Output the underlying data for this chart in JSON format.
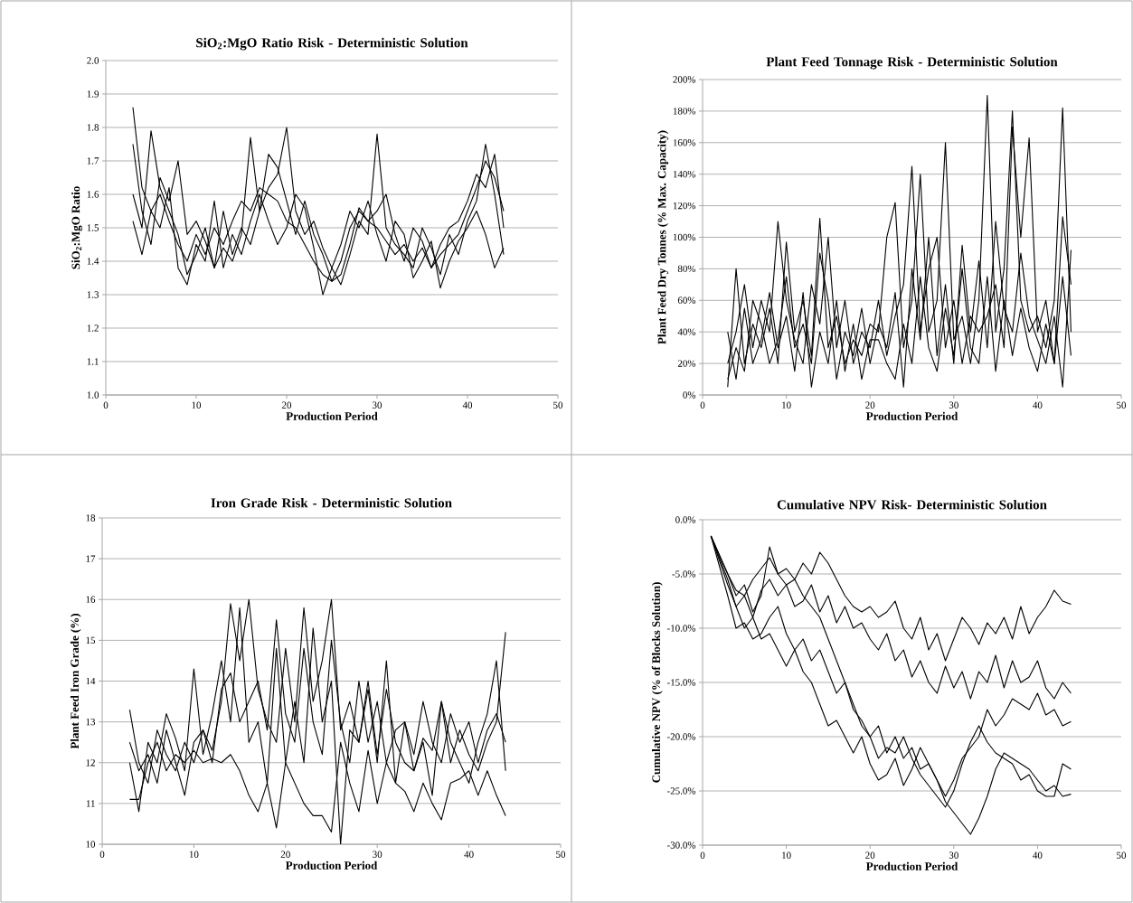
{
  "chart_data": [
    {
      "type": "line",
      "title": "SiO$_{2}$:MgO Ratio Risk - Deterministic Solution",
      "xlabel": "Production Period",
      "ylabel": "SiO$_{2}$:MgO Ratio",
      "grid": "y",
      "marker": "none",
      "line_style": "solid",
      "xlim": [
        0,
        50
      ],
      "xticks": [
        0,
        10,
        20,
        30,
        40,
        50
      ],
      "ylim": [
        1.0,
        2.0
      ],
      "yticks": [
        {
          "value": 1.0,
          "label": "1.0"
        },
        1.1,
        1.2,
        1.3,
        1.4,
        1.5,
        1.6,
        1.7,
        1.8,
        1.9,
        {
          "value": 2.0,
          "label": "2.0"
        }
      ],
      "x": [
        3,
        4,
        5,
        6,
        7,
        8,
        9,
        10,
        11,
        12,
        13,
        14,
        15,
        16,
        17,
        18,
        19,
        20,
        21,
        22,
        23,
        24,
        25,
        26,
        27,
        28,
        29,
        30,
        31,
        32,
        33,
        34,
        35,
        36,
        37,
        38,
        39,
        40,
        41,
        42,
        43,
        44
      ],
      "series": [
        {
          "color": "#000000",
          "values": [
            1.86,
            1.62,
            1.55,
            1.6,
            1.52,
            1.45,
            1.4,
            1.48,
            1.42,
            1.5,
            1.45,
            1.52,
            1.58,
            1.55,
            1.62,
            1.6,
            1.58,
            1.52,
            1.5,
            1.45,
            1.4,
            1.36,
            1.34,
            1.4,
            1.5,
            1.55,
            1.52,
            1.5,
            1.46,
            1.42,
            1.45,
            1.4,
            1.44,
            1.38,
            1.42,
            1.45,
            1.48,
            1.55,
            1.62,
            1.7,
            1.65,
            1.55
          ]
        },
        {
          "color": "#000000",
          "values": [
            1.6,
            1.5,
            1.79,
            1.62,
            1.55,
            1.48,
            1.36,
            1.42,
            1.5,
            1.38,
            1.44,
            1.4,
            1.48,
            1.77,
            1.55,
            1.62,
            1.66,
            1.8,
            1.55,
            1.48,
            1.52,
            1.44,
            1.38,
            1.33,
            1.42,
            1.52,
            1.48,
            1.78,
            1.5,
            1.45,
            1.42,
            1.38,
            1.5,
            1.44,
            1.36,
            1.48,
            1.42,
            1.52,
            1.58,
            1.75,
            1.6,
            1.42
          ]
        },
        {
          "color": "#000000",
          "values": [
            1.52,
            1.42,
            1.55,
            1.5,
            1.62,
            1.38,
            1.33,
            1.45,
            1.4,
            1.58,
            1.38,
            1.48,
            1.42,
            1.52,
            1.6,
            1.52,
            1.45,
            1.5,
            1.6,
            1.56,
            1.44,
            1.3,
            1.38,
            1.45,
            1.55,
            1.5,
            1.58,
            1.48,
            1.4,
            1.52,
            1.48,
            1.35,
            1.4,
            1.46,
            1.32,
            1.4,
            1.46,
            1.5,
            1.55,
            1.48,
            1.38,
            1.44
          ]
        },
        {
          "color": "#000000",
          "values": [
            1.75,
            1.55,
            1.45,
            1.65,
            1.58,
            1.7,
            1.48,
            1.52,
            1.46,
            1.38,
            1.55,
            1.42,
            1.5,
            1.45,
            1.55,
            1.72,
            1.68,
            1.58,
            1.48,
            1.58,
            1.48,
            1.42,
            1.34,
            1.36,
            1.45,
            1.56,
            1.52,
            1.55,
            1.6,
            1.48,
            1.4,
            1.5,
            1.46,
            1.38,
            1.45,
            1.5,
            1.52,
            1.58,
            1.66,
            1.62,
            1.72,
            1.5
          ]
        }
      ]
    },
    {
      "type": "line",
      "title": "Plant Feed Tonnage Risk - Deterministic Solution",
      "xlabel": "Production Period",
      "ylabel": "Plant Feed Dry Tonnes (% Max. Capacity)",
      "grid": "y",
      "marker": "none",
      "line_style": "solid",
      "xlim": [
        0,
        50
      ],
      "xticks": [
        0,
        10,
        20,
        30,
        40,
        50
      ],
      "ylim": [
        0,
        200
      ],
      "yticks": [
        {
          "value": 0,
          "label": "0%"
        },
        {
          "value": 20,
          "label": "20%"
        },
        {
          "value": 40,
          "label": "40%"
        },
        {
          "value": 60,
          "label": "60%"
        },
        {
          "value": 80,
          "label": "80%"
        },
        {
          "value": 100,
          "label": "100%"
        },
        {
          "value": 120,
          "label": "120%"
        },
        {
          "value": 140,
          "label": "140%"
        },
        {
          "value": 160,
          "label": "160%"
        },
        {
          "value": 180,
          "label": "180%"
        },
        {
          "value": 200,
          "label": "200%"
        }
      ],
      "x": [
        3,
        4,
        5,
        6,
        7,
        8,
        9,
        10,
        11,
        12,
        13,
        14,
        15,
        16,
        17,
        18,
        19,
        20,
        21,
        22,
        23,
        24,
        25,
        26,
        27,
        28,
        29,
        30,
        31,
        32,
        33,
        34,
        35,
        36,
        37,
        38,
        39,
        40,
        41,
        42,
        43,
        44
      ],
      "series": [
        {
          "color": "#000000",
          "values": [
            5,
            80,
            20,
            45,
            30,
            55,
            20,
            97,
            40,
            60,
            25,
            112,
            30,
            50,
            20,
            35,
            25,
            45,
            40,
            100,
            122,
            30,
            60,
            140,
            40,
            60,
            160,
            35,
            50,
            20,
            60,
            190,
            40,
            80,
            180,
            60,
            40,
            50,
            30,
            60,
            182,
            40
          ]
        },
        {
          "color": "#000000",
          "values": [
            20,
            40,
            70,
            30,
            60,
            40,
            110,
            60,
            35,
            20,
            70,
            45,
            100,
            30,
            60,
            20,
            40,
            30,
            60,
            25,
            50,
            70,
            145,
            40,
            80,
            100,
            30,
            60,
            20,
            50,
            40,
            50,
            70,
            30,
            170,
            100,
            163,
            40,
            60,
            20,
            113,
            70
          ]
        },
        {
          "color": "#000000",
          "values": [
            40,
            10,
            55,
            20,
            35,
            65,
            30,
            50,
            15,
            65,
            5,
            40,
            20,
            60,
            15,
            45,
            10,
            35,
            35,
            20,
            10,
            45,
            20,
            75,
            30,
            15,
            55,
            25,
            80,
            30,
            20,
            75,
            15,
            60,
            25,
            55,
            30,
            15,
            45,
            20,
            75,
            25
          ]
        },
        {
          "color": "#000000",
          "values": [
            10,
            30,
            15,
            60,
            45,
            20,
            35,
            75,
            30,
            45,
            20,
            90,
            60,
            10,
            40,
            25,
            55,
            20,
            45,
            30,
            65,
            5,
            80,
            35,
            100,
            25,
            70,
            20,
            95,
            40,
            85,
            30,
            110,
            55,
            40,
            90,
            50,
            35,
            20,
            50,
            5,
            92
          ]
        }
      ]
    },
    {
      "type": "line",
      "title": "Iron Grade Risk - Deterministic Solution",
      "xlabel": "Production Period",
      "ylabel": "Plant Feed Iron Grade (%)",
      "grid": "y",
      "marker": "none",
      "line_style": "solid",
      "xlim": [
        0,
        50
      ],
      "xticks": [
        0,
        10,
        20,
        30,
        40,
        50
      ],
      "ylim": [
        10,
        18
      ],
      "yticks": [
        10,
        11,
        12,
        13,
        14,
        15,
        16,
        17,
        18
      ],
      "x": [
        3,
        4,
        5,
        6,
        7,
        8,
        9,
        10,
        11,
        12,
        13,
        14,
        15,
        16,
        17,
        18,
        19,
        20,
        21,
        22,
        23,
        24,
        25,
        26,
        27,
        28,
        29,
        30,
        31,
        32,
        33,
        34,
        35,
        36,
        37,
        38,
        39,
        40,
        41,
        42,
        43,
        44
      ],
      "series": [
        {
          "color": "#000000",
          "values": [
            13.3,
            12.0,
            11.5,
            12.8,
            12.2,
            11.8,
            12.5,
            12.0,
            12.8,
            12.3,
            13.5,
            15.9,
            14.5,
            16.0,
            13.8,
            13.0,
            12.5,
            14.8,
            13.0,
            15.8,
            13.5,
            14.5,
            16.0,
            12.8,
            13.5,
            12.5,
            14.0,
            12.2,
            13.8,
            12.5,
            12.0,
            11.8,
            12.6,
            12.3,
            13.5,
            12.0,
            12.8,
            12.2,
            11.8,
            12.5,
            13.0,
            15.2
          ]
        },
        {
          "color": "#000000",
          "values": [
            12.0,
            10.8,
            12.5,
            12.0,
            13.2,
            12.6,
            11.8,
            14.3,
            12.2,
            13.2,
            14.5,
            13.0,
            15.8,
            12.5,
            13.0,
            11.5,
            14.8,
            12.0,
            13.5,
            12.0,
            15.3,
            13.0,
            14.0,
            10.0,
            12.8,
            12.5,
            13.8,
            12.0,
            14.5,
            11.5,
            13.0,
            11.8,
            12.5,
            11.2,
            13.5,
            12.5,
            12.0,
            11.5,
            12.5,
            13.2,
            14.5,
            11.8
          ]
        },
        {
          "color": "#000000",
          "values": [
            11.1,
            11.1,
            12.0,
            12.5,
            11.8,
            12.2,
            12.0,
            12.3,
            12.0,
            12.1,
            12.0,
            12.2,
            11.8,
            11.2,
            10.8,
            11.5,
            10.4,
            12.0,
            11.5,
            11.0,
            10.7,
            10.7,
            10.3,
            12.5,
            11.5,
            10.8,
            12.3,
            11.0,
            12.0,
            11.5,
            11.3,
            10.8,
            11.5,
            11.0,
            10.6,
            11.5,
            11.6,
            11.8,
            11.2,
            11.8,
            11.2,
            10.7
          ]
        },
        {
          "color": "#000000",
          "values": [
            12.5,
            11.8,
            12.2,
            11.5,
            12.8,
            12.0,
            11.2,
            12.5,
            12.8,
            12.0,
            13.8,
            14.2,
            13.0,
            13.5,
            14.0,
            12.8,
            15.5,
            13.2,
            12.5,
            14.8,
            13.0,
            12.2,
            15.0,
            13.0,
            12.0,
            14.0,
            12.5,
            13.5,
            12.0,
            12.8,
            13.0,
            12.2,
            13.5,
            12.5,
            12.0,
            13.2,
            12.5,
            13.0,
            12.0,
            12.8,
            13.2,
            12.5
          ]
        }
      ]
    },
    {
      "type": "line",
      "title": "Cumulative NPV Risk- Deterministic Solution",
      "xlabel": "Production Period",
      "ylabel": "Cumulative NPV (% of Blocks Solution)",
      "grid": "y",
      "marker": "none",
      "line_style": "solid",
      "xlim": [
        0,
        50
      ],
      "xticks": [
        0,
        10,
        20,
        30,
        40,
        50
      ],
      "ylim": [
        -30,
        0
      ],
      "yticks": [
        {
          "value": -30,
          "label": "-30.0%"
        },
        {
          "value": -25,
          "label": "-25.0%"
        },
        {
          "value": -20,
          "label": "-20.0%"
        },
        {
          "value": -15,
          "label": "-15.0%"
        },
        {
          "value": -10,
          "label": "-10.0%"
        },
        {
          "value": -5,
          "label": "-5.0%"
        },
        {
          "value": 0,
          "label": "0.0%"
        }
      ],
      "x": [
        1,
        3,
        4,
        5,
        6,
        7,
        8,
        9,
        10,
        11,
        12,
        13,
        14,
        15,
        16,
        17,
        18,
        19,
        20,
        21,
        22,
        23,
        24,
        25,
        26,
        27,
        28,
        29,
        30,
        31,
        32,
        33,
        34,
        35,
        36,
        37,
        38,
        39,
        40,
        41,
        42,
        43,
        44
      ],
      "series": [
        {
          "color": "#000000",
          "values": [
            -1.5,
            -5.0,
            -6.5,
            -7.0,
            -5.5,
            -4.5,
            -3.5,
            -5.0,
            -4.5,
            -5.5,
            -4.0,
            -5.0,
            -3.0,
            -4.0,
            -5.5,
            -7.0,
            -8.0,
            -8.5,
            -8.0,
            -9.0,
            -8.5,
            -7.5,
            -10.0,
            -11.0,
            -9.0,
            -12.0,
            -10.5,
            -13.0,
            -11.0,
            -9.0,
            -10.0,
            -11.5,
            -9.5,
            -10.5,
            -9.0,
            -11.0,
            -8.0,
            -10.5,
            -9.0,
            -8.0,
            -6.5,
            -7.5,
            -7.8
          ]
        },
        {
          "color": "#000000",
          "values": [
            -1.5,
            -6.0,
            -8.0,
            -7.0,
            -9.0,
            -6.5,
            -5.5,
            -7.0,
            -6.0,
            -8.0,
            -7.5,
            -6.0,
            -8.5,
            -7.0,
            -9.5,
            -8.0,
            -10.0,
            -9.5,
            -11.0,
            -12.0,
            -10.5,
            -13.0,
            -12.0,
            -14.5,
            -13.0,
            -15.0,
            -16.0,
            -13.5,
            -15.5,
            -14.0,
            -16.5,
            -14.0,
            -15.0,
            -12.5,
            -15.5,
            -13.0,
            -15.0,
            -14.5,
            -13.0,
            -15.5,
            -16.5,
            -15.0,
            -16.0
          ]
        },
        {
          "color": "#000000",
          "values": [
            -1.5,
            -7.0,
            -10.0,
            -9.5,
            -11.0,
            -10.5,
            -9.0,
            -8.0,
            -10.5,
            -12.0,
            -11.0,
            -13.0,
            -12.0,
            -14.0,
            -16.0,
            -15.0,
            -17.5,
            -18.5,
            -20.0,
            -19.0,
            -21.5,
            -20.0,
            -22.0,
            -21.0,
            -23.0,
            -22.5,
            -24.0,
            -25.5,
            -24.0,
            -22.0,
            -21.0,
            -20.0,
            -17.5,
            -19.0,
            -18.0,
            -16.5,
            -17.0,
            -17.5,
            -16.0,
            -18.0,
            -17.5,
            -19.0,
            -18.6
          ]
        },
        {
          "color": "#000000",
          "values": [
            -1.5,
            -5.5,
            -8.0,
            -10.0,
            -9.0,
            -11.0,
            -10.5,
            -12.0,
            -13.5,
            -12.0,
            -14.0,
            -15.0,
            -17.0,
            -19.0,
            -18.5,
            -20.0,
            -21.5,
            -20.0,
            -22.5,
            -24.0,
            -23.5,
            -22.0,
            -24.5,
            -23.0,
            -21.0,
            -22.5,
            -24.0,
            -26.0,
            -27.0,
            -28.0,
            -29.0,
            -27.5,
            -25.5,
            -23.0,
            -21.5,
            -22.0,
            -22.5,
            -23.0,
            -24.0,
            -25.0,
            -24.5,
            -25.5,
            -25.3
          ]
        },
        {
          "color": "#000000",
          "values": [
            -1.5,
            -5.0,
            -7.0,
            -6.0,
            -8.5,
            -7.0,
            -2.5,
            -5.0,
            -6.0,
            -5.5,
            -7.0,
            -8.0,
            -9.0,
            -11.0,
            -13.0,
            -15.0,
            -17.0,
            -19.0,
            -20.0,
            -22.0,
            -21.0,
            -21.5,
            -20.0,
            -22.0,
            -23.5,
            -24.5,
            -25.5,
            -26.5,
            -25.0,
            -22.5,
            -20.5,
            -19.0,
            -20.5,
            -21.5,
            -22.0,
            -22.5,
            -24.0,
            -23.5,
            -25.0,
            -25.5,
            -25.5,
            -22.5,
            -23.0
          ]
        }
      ]
    }
  ]
}
